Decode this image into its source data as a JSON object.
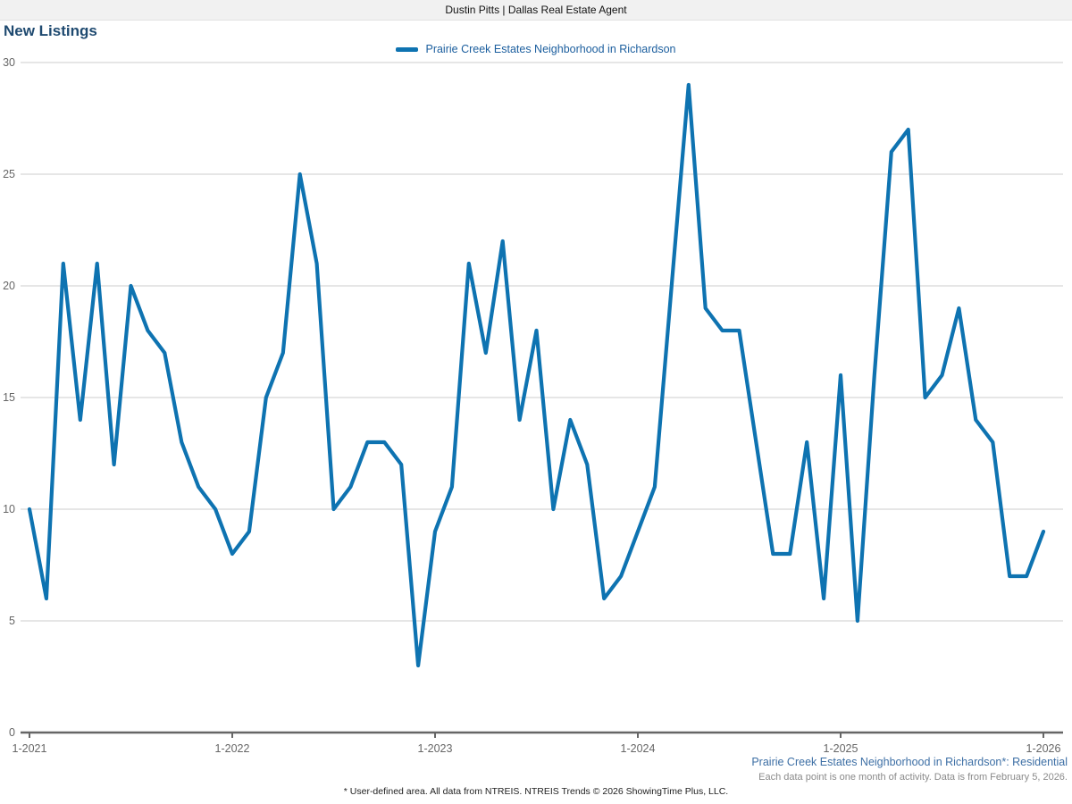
{
  "header": {
    "title": "Dustin Pitts | Dallas Real Estate Agent"
  },
  "page_title": "New Listings",
  "legend": {
    "label": "Prairie Creek Estates Neighborhood in Richardson"
  },
  "footer": {
    "series_note": "Prairie Creek Estates Neighborhood in Richardson*: Residential",
    "data_note": "Each data point is one month of activity. Data is from February 5, 2026.",
    "disclaimer": "* User-defined area. All data from NTREIS. NTREIS Trends © 2026 ShowingTime Plus, LLC."
  },
  "colors": {
    "line": "#0e73b1",
    "title": "#1f4a70",
    "legend_text": "#1b5e9e",
    "footer_link": "#3d6fa5",
    "footer_note": "#8a8a8a",
    "axis": "#666666",
    "grid": "#cccccc",
    "topbar_bg": "#f1f1f1"
  },
  "chart_data": {
    "type": "line",
    "title": "New Listings",
    "series_name": "Prairie Creek Estates Neighborhood in Richardson",
    "x_unit": "month",
    "x_start": "1-2021",
    "x_end": "1-2026",
    "x_tick_labels": [
      "1-2021",
      "1-2022",
      "1-2023",
      "1-2024",
      "1-2025",
      "1-2026"
    ],
    "y_ticks": [
      0,
      5,
      10,
      15,
      20,
      25,
      30
    ],
    "ylim": [
      0,
      30
    ],
    "grid": true,
    "legend_position": "top-center",
    "values_by_year": {
      "2021": [
        10,
        6,
        21,
        14,
        21,
        12,
        20,
        18,
        17,
        13,
        11,
        10
      ],
      "2022": [
        8,
        9,
        15,
        17,
        25,
        21,
        10,
        11,
        13,
        13,
        12,
        3
      ],
      "2023": [
        9,
        11,
        21,
        17,
        22,
        14,
        18,
        10,
        14,
        12,
        6,
        7
      ],
      "2024": [
        9,
        11,
        20,
        29,
        19,
        18,
        18,
        13,
        8,
        8,
        13,
        6
      ],
      "2025": [
        16,
        5,
        16,
        26,
        27,
        15,
        16,
        19,
        14,
        13,
        7,
        7
      ],
      "2026": [
        9
      ]
    },
    "values": [
      10,
      6,
      21,
      14,
      21,
      12,
      20,
      18,
      17,
      13,
      11,
      10,
      8,
      9,
      15,
      17,
      25,
      21,
      10,
      11,
      13,
      13,
      12,
      3,
      9,
      11,
      21,
      17,
      22,
      14,
      18,
      10,
      14,
      12,
      6,
      7,
      9,
      11,
      20,
      29,
      19,
      18,
      18,
      13,
      8,
      8,
      13,
      6,
      16,
      5,
      16,
      26,
      27,
      15,
      16,
      19,
      14,
      13,
      7,
      7,
      9
    ]
  }
}
